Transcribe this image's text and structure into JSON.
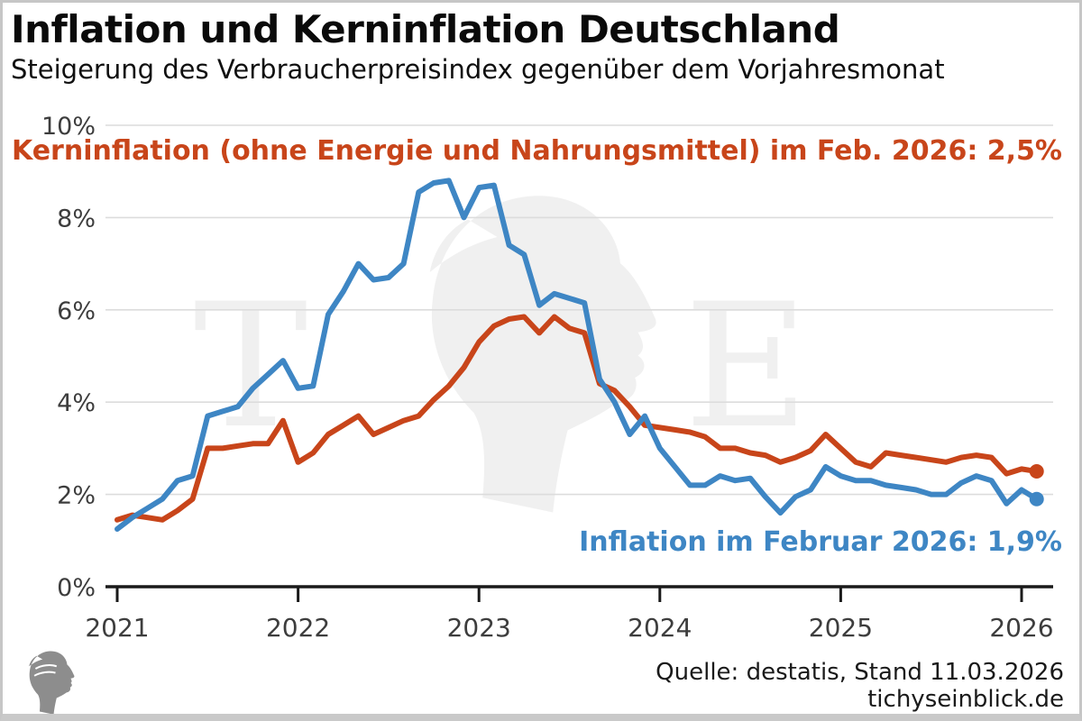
{
  "header": {
    "title": "Inflation und Kerninflation Deutschland",
    "subtitle": "Steigerung des Verbraucherpreisindex gegenüber dem Vorjahresmonat"
  },
  "annotations": {
    "core_label": "Kerninflation (ohne Energie und Nahrungsmittel) im Feb. 2026: 2,5%",
    "headline_label": "Inflation im Februar 2026: 1,9%"
  },
  "footer": {
    "source": "Quelle: destatis, Stand 11.03.2026",
    "site": "tichyseinblick.de"
  },
  "watermark": {
    "left_letter": "T",
    "right_letter": "E"
  },
  "colors": {
    "headline_series": "#3e86c4",
    "core_series": "#c8451a",
    "grid": "#dcdcdc",
    "axis": "#1a1a1a",
    "tick_label": "#3d3d3d",
    "watermark": "#f0f0f0",
    "logo_gray": "#8d8d8d"
  },
  "chart_data": {
    "type": "line",
    "title": "Inflation und Kerninflation Deutschland",
    "subtitle": "Steigerung des Verbraucherpreisindex gegenüber dem Vorjahresmonat",
    "x_start": "2021-01",
    "x_end": "2026-02",
    "frequency": "monthly",
    "ylim": [
      0,
      10
    ],
    "y_ticks": [
      0,
      2,
      4,
      6,
      8,
      10
    ],
    "y_tick_labels": [
      "0%",
      "2%",
      "4%",
      "6%",
      "8%",
      "10%"
    ],
    "x_tick_labels": [
      "2021",
      "2022",
      "2023",
      "2024",
      "2025",
      "2026"
    ],
    "grid": true,
    "legend_position": "none (direct labels on chart)",
    "end_point_markers": true,
    "series": [
      {
        "name": "Kerninflation (ohne Energie und Nahrungsmittel)",
        "color": "#c8451a",
        "last_value_label": "Feb. 2026: 2,5%",
        "values": [
          1.45,
          1.55,
          1.5,
          1.45,
          1.65,
          1.9,
          3.0,
          3.0,
          3.05,
          3.1,
          3.1,
          3.6,
          2.7,
          2.9,
          3.3,
          3.5,
          3.7,
          3.3,
          3.45,
          3.6,
          3.7,
          4.05,
          4.35,
          4.75,
          5.3,
          5.65,
          5.8,
          5.85,
          5.5,
          5.85,
          5.6,
          5.5,
          4.4,
          4.25,
          3.9,
          3.5,
          3.45,
          3.4,
          3.35,
          3.25,
          3.0,
          3.0,
          2.9,
          2.85,
          2.7,
          2.8,
          2.95,
          3.3,
          3.0,
          2.7,
          2.6,
          2.9,
          2.85,
          2.8,
          2.75,
          2.7,
          2.8,
          2.85,
          2.8,
          2.45,
          2.55,
          2.5
        ]
      },
      {
        "name": "Inflation",
        "color": "#3e86c4",
        "last_value_label": "Februar 2026: 1,9%",
        "values": [
          1.25,
          1.5,
          1.7,
          1.9,
          2.3,
          2.4,
          3.7,
          3.8,
          3.9,
          4.3,
          4.6,
          4.9,
          4.3,
          4.35,
          5.9,
          6.4,
          7.0,
          6.65,
          6.7,
          7.0,
          8.55,
          8.75,
          8.8,
          8.0,
          8.65,
          8.7,
          7.4,
          7.2,
          6.1,
          6.35,
          6.25,
          6.15,
          4.5,
          4.0,
          3.3,
          3.7,
          3.0,
          2.6,
          2.2,
          2.2,
          2.4,
          2.3,
          2.35,
          1.95,
          1.6,
          1.95,
          2.1,
          2.6,
          2.4,
          2.3,
          2.3,
          2.2,
          2.15,
          2.1,
          2.0,
          2.0,
          2.25,
          2.4,
          2.3,
          1.8,
          2.1,
          1.9
        ]
      }
    ]
  }
}
